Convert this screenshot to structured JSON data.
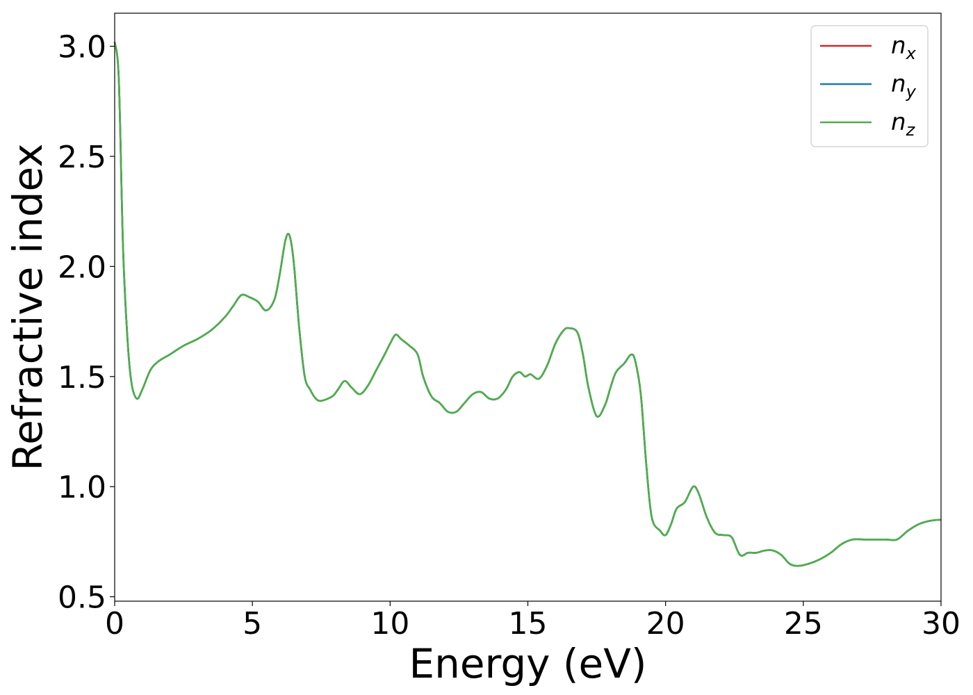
{
  "chart_data": {
    "type": "line",
    "title": "",
    "xlabel": "Energy (eV)",
    "ylabel": "Refractive index",
    "xlim": [
      0,
      30
    ],
    "ylim": [
      0.48,
      3.15
    ],
    "xticks": [
      0,
      5,
      10,
      15,
      20,
      25,
      30
    ],
    "xtick_labels": [
      "0",
      "5",
      "10",
      "15",
      "20",
      "25",
      "30"
    ],
    "yticks": [
      0.5,
      1.0,
      1.5,
      2.0,
      2.5,
      3.0
    ],
    "ytick_labels": [
      "0.5",
      "1.0",
      "1.5",
      "2.0",
      "2.5",
      "3.0"
    ],
    "grid": false,
    "legend_position": "top-right",
    "x": [
      0,
      0.15,
      0.3,
      0.45,
      0.6,
      0.8,
      1.0,
      1.3,
      1.6,
      2.0,
      2.5,
      3.0,
      3.5,
      4.0,
      4.3,
      4.6,
      4.9,
      5.2,
      5.5,
      5.8,
      6.0,
      6.2,
      6.35,
      6.5,
      6.7,
      6.9,
      7.1,
      7.3,
      7.5,
      7.9,
      8.1,
      8.35,
      8.6,
      8.9,
      9.2,
      9.5,
      9.8,
      10.0,
      10.2,
      10.4,
      10.7,
      11.0,
      11.2,
      11.5,
      11.8,
      12.1,
      12.4,
      12.7,
      13.0,
      13.3,
      13.6,
      13.9,
      14.2,
      14.45,
      14.7,
      14.9,
      15.1,
      15.4,
      15.7,
      16.0,
      16.3,
      16.5,
      16.8,
      17.0,
      17.2,
      17.5,
      17.8,
      18.0,
      18.2,
      18.5,
      18.75,
      18.9,
      19.1,
      19.3,
      19.5,
      19.8,
      20.0,
      20.2,
      20.4,
      20.7,
      21.0,
      21.2,
      21.5,
      21.8,
      22.1,
      22.4,
      22.7,
      23.0,
      23.3,
      23.6,
      23.9,
      24.2,
      24.5,
      24.8,
      25.2,
      25.6,
      26.0,
      26.4,
      26.8,
      27.2,
      27.6,
      28.0,
      28.4,
      28.8,
      29.2,
      29.6,
      30.0
    ],
    "series": [
      {
        "name": "n_x",
        "label_base": "n",
        "label_sub": "x",
        "color": "#d62728",
        "values": [
          3.02,
          2.85,
          2.1,
          1.7,
          1.48,
          1.4,
          1.44,
          1.53,
          1.57,
          1.6,
          1.64,
          1.67,
          1.71,
          1.77,
          1.82,
          1.87,
          1.86,
          1.84,
          1.8,
          1.85,
          1.97,
          2.12,
          2.14,
          2.02,
          1.72,
          1.5,
          1.44,
          1.4,
          1.39,
          1.41,
          1.44,
          1.48,
          1.45,
          1.42,
          1.46,
          1.53,
          1.6,
          1.65,
          1.69,
          1.67,
          1.64,
          1.6,
          1.5,
          1.41,
          1.38,
          1.34,
          1.34,
          1.38,
          1.42,
          1.43,
          1.4,
          1.4,
          1.44,
          1.5,
          1.52,
          1.5,
          1.51,
          1.49,
          1.55,
          1.65,
          1.71,
          1.72,
          1.7,
          1.6,
          1.45,
          1.32,
          1.37,
          1.45,
          1.52,
          1.56,
          1.6,
          1.57,
          1.42,
          1.1,
          0.86,
          0.8,
          0.78,
          0.83,
          0.9,
          0.93,
          1.0,
          0.97,
          0.86,
          0.79,
          0.78,
          0.77,
          0.69,
          0.7,
          0.7,
          0.71,
          0.71,
          0.69,
          0.65,
          0.64,
          0.65,
          0.67,
          0.7,
          0.74,
          0.76,
          0.76,
          0.76,
          0.76,
          0.76,
          0.8,
          0.83,
          0.845,
          0.85
        ]
      },
      {
        "name": "n_y",
        "label_base": "n",
        "label_sub": "y",
        "color": "#1f77b4",
        "values": [
          3.02,
          2.85,
          2.1,
          1.7,
          1.48,
          1.4,
          1.44,
          1.53,
          1.57,
          1.6,
          1.64,
          1.67,
          1.71,
          1.77,
          1.82,
          1.87,
          1.86,
          1.84,
          1.8,
          1.85,
          1.97,
          2.12,
          2.14,
          2.02,
          1.72,
          1.5,
          1.44,
          1.4,
          1.39,
          1.41,
          1.44,
          1.48,
          1.45,
          1.42,
          1.46,
          1.53,
          1.6,
          1.65,
          1.69,
          1.67,
          1.64,
          1.6,
          1.5,
          1.41,
          1.38,
          1.34,
          1.34,
          1.38,
          1.42,
          1.43,
          1.4,
          1.4,
          1.44,
          1.5,
          1.52,
          1.5,
          1.51,
          1.49,
          1.55,
          1.65,
          1.71,
          1.72,
          1.7,
          1.6,
          1.45,
          1.32,
          1.37,
          1.45,
          1.52,
          1.56,
          1.6,
          1.57,
          1.42,
          1.1,
          0.86,
          0.8,
          0.78,
          0.83,
          0.9,
          0.93,
          1.0,
          0.97,
          0.86,
          0.79,
          0.78,
          0.77,
          0.69,
          0.7,
          0.7,
          0.71,
          0.71,
          0.69,
          0.65,
          0.64,
          0.65,
          0.67,
          0.7,
          0.74,
          0.76,
          0.76,
          0.76,
          0.76,
          0.76,
          0.8,
          0.83,
          0.845,
          0.85
        ]
      },
      {
        "name": "n_z",
        "label_base": "n",
        "label_sub": "z",
        "color": "#4daf4a",
        "values": [
          3.02,
          2.85,
          2.1,
          1.7,
          1.48,
          1.4,
          1.44,
          1.53,
          1.57,
          1.6,
          1.64,
          1.67,
          1.71,
          1.77,
          1.82,
          1.87,
          1.86,
          1.84,
          1.8,
          1.85,
          1.97,
          2.12,
          2.14,
          2.02,
          1.72,
          1.5,
          1.44,
          1.4,
          1.39,
          1.41,
          1.44,
          1.48,
          1.45,
          1.42,
          1.46,
          1.53,
          1.6,
          1.65,
          1.69,
          1.67,
          1.64,
          1.6,
          1.5,
          1.41,
          1.38,
          1.34,
          1.34,
          1.38,
          1.42,
          1.43,
          1.4,
          1.4,
          1.44,
          1.5,
          1.52,
          1.5,
          1.51,
          1.49,
          1.55,
          1.65,
          1.71,
          1.72,
          1.7,
          1.6,
          1.45,
          1.32,
          1.37,
          1.45,
          1.52,
          1.56,
          1.6,
          1.57,
          1.42,
          1.1,
          0.86,
          0.8,
          0.78,
          0.83,
          0.9,
          0.93,
          1.0,
          0.97,
          0.86,
          0.79,
          0.78,
          0.77,
          0.69,
          0.7,
          0.7,
          0.71,
          0.71,
          0.69,
          0.65,
          0.64,
          0.65,
          0.67,
          0.7,
          0.74,
          0.76,
          0.76,
          0.76,
          0.76,
          0.76,
          0.8,
          0.83,
          0.845,
          0.85
        ]
      }
    ]
  }
}
